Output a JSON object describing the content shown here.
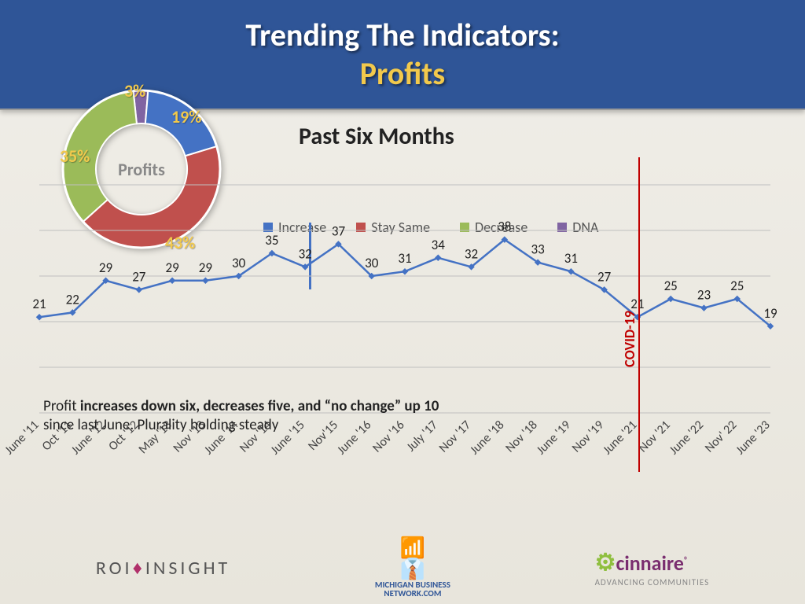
{
  "header": {
    "line1": "Trending The Indicators:",
    "line2": "Profits"
  },
  "chart_title": "Past Six Months",
  "donut": {
    "center_label": "Profits",
    "slices": [
      {
        "label": "Increase",
        "pct": 19,
        "color": "#4472c4",
        "lbl": "19%",
        "lx": 148,
        "ly": 30,
        "lc": "#f2c94c"
      },
      {
        "label": "Stay Same",
        "pct": 43,
        "color": "#c0504d",
        "lbl": "43%",
        "lx": 140,
        "ly": 190,
        "lc": "#f2c94c"
      },
      {
        "label": "Decrease",
        "pct": 35,
        "color": "#9bbb59",
        "lbl": "35%",
        "lx": 6,
        "ly": 80,
        "lc": "#f2c94c"
      },
      {
        "label": "DNA",
        "pct": 3,
        "color": "#8064a2",
        "lbl": "3%",
        "lx": 88,
        "ly": -3,
        "lc": "#f2c94c"
      }
    ]
  },
  "legend": [
    {
      "label": "Increase",
      "color": "#4472c4"
    },
    {
      "label": "Stay Same",
      "color": "#c0504d"
    },
    {
      "label": "Decrease",
      "color": "#9bbb59"
    },
    {
      "label": "DNA",
      "color": "#8064a2"
    }
  ],
  "line_chart": {
    "type": "line",
    "color": "#4472c4",
    "marker": {
      "shape": "diamond",
      "size": 5
    },
    "ylim": [
      0,
      50
    ],
    "grid_color": "#bfbfbf",
    "categories": [
      "June '11",
      "Oct '11",
      "June '12",
      "Oct '12",
      "May '13",
      "Nov '13",
      "June '14",
      "Nov '14",
      "June '15",
      "Nov'15",
      "June '16",
      "Nov '16",
      "July '17",
      "Nov '17",
      "June '18",
      "Nov '18",
      "June '19",
      "Nov '19",
      "June '21",
      "Nov '21",
      "June '22",
      "Nov' 22",
      "June '23"
    ],
    "values": [
      21,
      22,
      29,
      27,
      29,
      29,
      30,
      35,
      32,
      37,
      30,
      31,
      34,
      32,
      38,
      33,
      31,
      27,
      21,
      25,
      23,
      25,
      19
    ]
  },
  "covid_label": "COVID-19",
  "annotation": {
    "pre": "Profit ",
    "bold": "increases down six, decreases five, and “no change” up 10",
    "post": " since last June. Plurality holding steady"
  },
  "logos": {
    "roi": {
      "a": "ROI",
      "b": "INSIGHT"
    },
    "mbn": {
      "l1": "MICHIGAN BUSINESS",
      "l2": "NETWORK.COM"
    },
    "cinnaire": {
      "name": "cinnaire",
      "tag": "ADVANCING COMMUNITIES"
    }
  }
}
